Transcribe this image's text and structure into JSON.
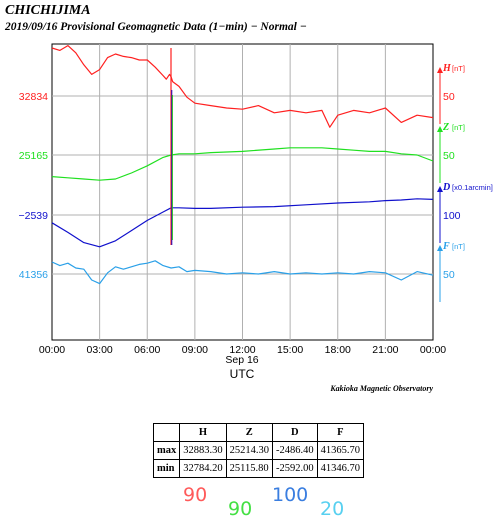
{
  "title": {
    "station": "CHICHIJIMA",
    "subtitle": "2019/09/16  Provisional Geomagnetic Data (1−min)  − Normal −"
  },
  "chart_data": {
    "type": "line",
    "x_ticks": [
      "00:00",
      "03:00",
      "06:00",
      "09:00",
      "12:00",
      "15:00",
      "18:00",
      "21:00",
      "00:00"
    ],
    "x_date_label": "Sep 16",
    "xlabel": "UTC",
    "grid": true,
    "series": [
      {
        "name": "H",
        "unit": "nT",
        "color": "#ff2020",
        "base_label": "32834",
        "scale_label": "50",
        "base": 32834,
        "scale": 50,
        "x": [
          0,
          0.5,
          1,
          1.5,
          2,
          2.5,
          3,
          3.5,
          4,
          4.5,
          5,
          5.5,
          6,
          6.5,
          7,
          7.2,
          7.4,
          7.5,
          7.6,
          8,
          8.5,
          9,
          10,
          11,
          12,
          13,
          14,
          15,
          16,
          17,
          17.5,
          18,
          19,
          20,
          21,
          22,
          23,
          24
        ],
        "y": [
          32874,
          32872,
          32876,
          32870,
          32860,
          32852,
          32856,
          32866,
          32869,
          32867,
          32866,
          32864,
          32864,
          32858,
          32851,
          32848,
          32852,
          32850,
          32846,
          32842,
          32833,
          32828,
          32826,
          32824,
          32823,
          32826,
          32820,
          32822,
          32820,
          32822,
          32808,
          32818,
          32822,
          32820,
          32824,
          32812,
          32818,
          32816
        ]
      },
      {
        "name": "Z",
        "unit": "nT",
        "color": "#20e020",
        "base_label": "25165",
        "scale_label": "50",
        "base": 25165,
        "scale": 50,
        "x": [
          0,
          1,
          2,
          3,
          4,
          5,
          6,
          7,
          7.5,
          8,
          9,
          10,
          12,
          14,
          15,
          16,
          17,
          18,
          19,
          20,
          21,
          22,
          23,
          24
        ],
        "y": [
          25147,
          25146,
          25145,
          25144,
          25145,
          25150,
          25156,
          25163,
          25165,
          25166,
          25166,
          25167,
          25168,
          25170,
          25171,
          25171,
          25171,
          25170,
          25169,
          25168,
          25168,
          25166,
          25165,
          25160
        ]
      },
      {
        "name": "D",
        "unit": "x0.1arcmin",
        "color": "#1010cc",
        "base_label": "−2539",
        "scale_label": "100",
        "base": -2539,
        "scale": 100,
        "x": [
          0,
          1,
          2,
          3,
          4,
          5,
          6,
          7,
          7.5,
          8,
          9,
          10,
          12,
          14,
          16,
          18,
          20,
          21,
          22,
          23,
          24
        ],
        "y": [
          -2552,
          -2568,
          -2585,
          -2592,
          -2582,
          -2565,
          -2548,
          -2534,
          -2527,
          -2527,
          -2528,
          -2528,
          -2526,
          -2525,
          -2522,
          -2519,
          -2517,
          -2515,
          -2514,
          -2512,
          -2513
        ]
      },
      {
        "name": "F",
        "unit": "nT",
        "color": "#2aa0e8",
        "base_label": "41356",
        "scale_label": "50",
        "base": 41356,
        "scale": 50,
        "x": [
          0,
          0.5,
          1,
          1.5,
          2,
          2.5,
          3,
          3.5,
          4,
          4.5,
          5,
          5.5,
          6,
          6.5,
          7,
          7.5,
          8,
          8.5,
          9,
          10,
          11,
          12,
          13,
          14,
          15,
          16,
          17,
          18,
          19,
          20,
          21,
          22,
          23,
          24
        ],
        "y": [
          41366,
          41363,
          41365,
          41361,
          41360,
          41351,
          41348,
          41357,
          41362,
          41360,
          41362,
          41364,
          41365,
          41367,
          41363,
          41361,
          41362,
          41358,
          41359,
          41358,
          41356,
          41357,
          41356,
          41358,
          41356,
          41357,
          41356,
          41357,
          41356,
          41358,
          41357,
          41351,
          41358,
          41355
        ]
      }
    ]
  },
  "observatory": "Kakioka Magnetic Observatory",
  "stats_table": {
    "headers": [
      "",
      "H",
      "Z",
      "D",
      "F"
    ],
    "rows": [
      {
        "label": "max",
        "values": [
          "32883.30",
          "25214.30",
          "-2486.40",
          "41365.70"
        ]
      },
      {
        "label": "min",
        "values": [
          "32784.20",
          "25115.80",
          "-2592.00",
          "41346.70"
        ]
      }
    ]
  },
  "handwritten": [
    {
      "text": "90",
      "color": "#ff5a5a"
    },
    {
      "text": "90",
      "color": "#44e044"
    },
    {
      "text": "100",
      "color": "#3a7ee0"
    },
    {
      "text": "20",
      "color": "#58d0f0"
    }
  ]
}
